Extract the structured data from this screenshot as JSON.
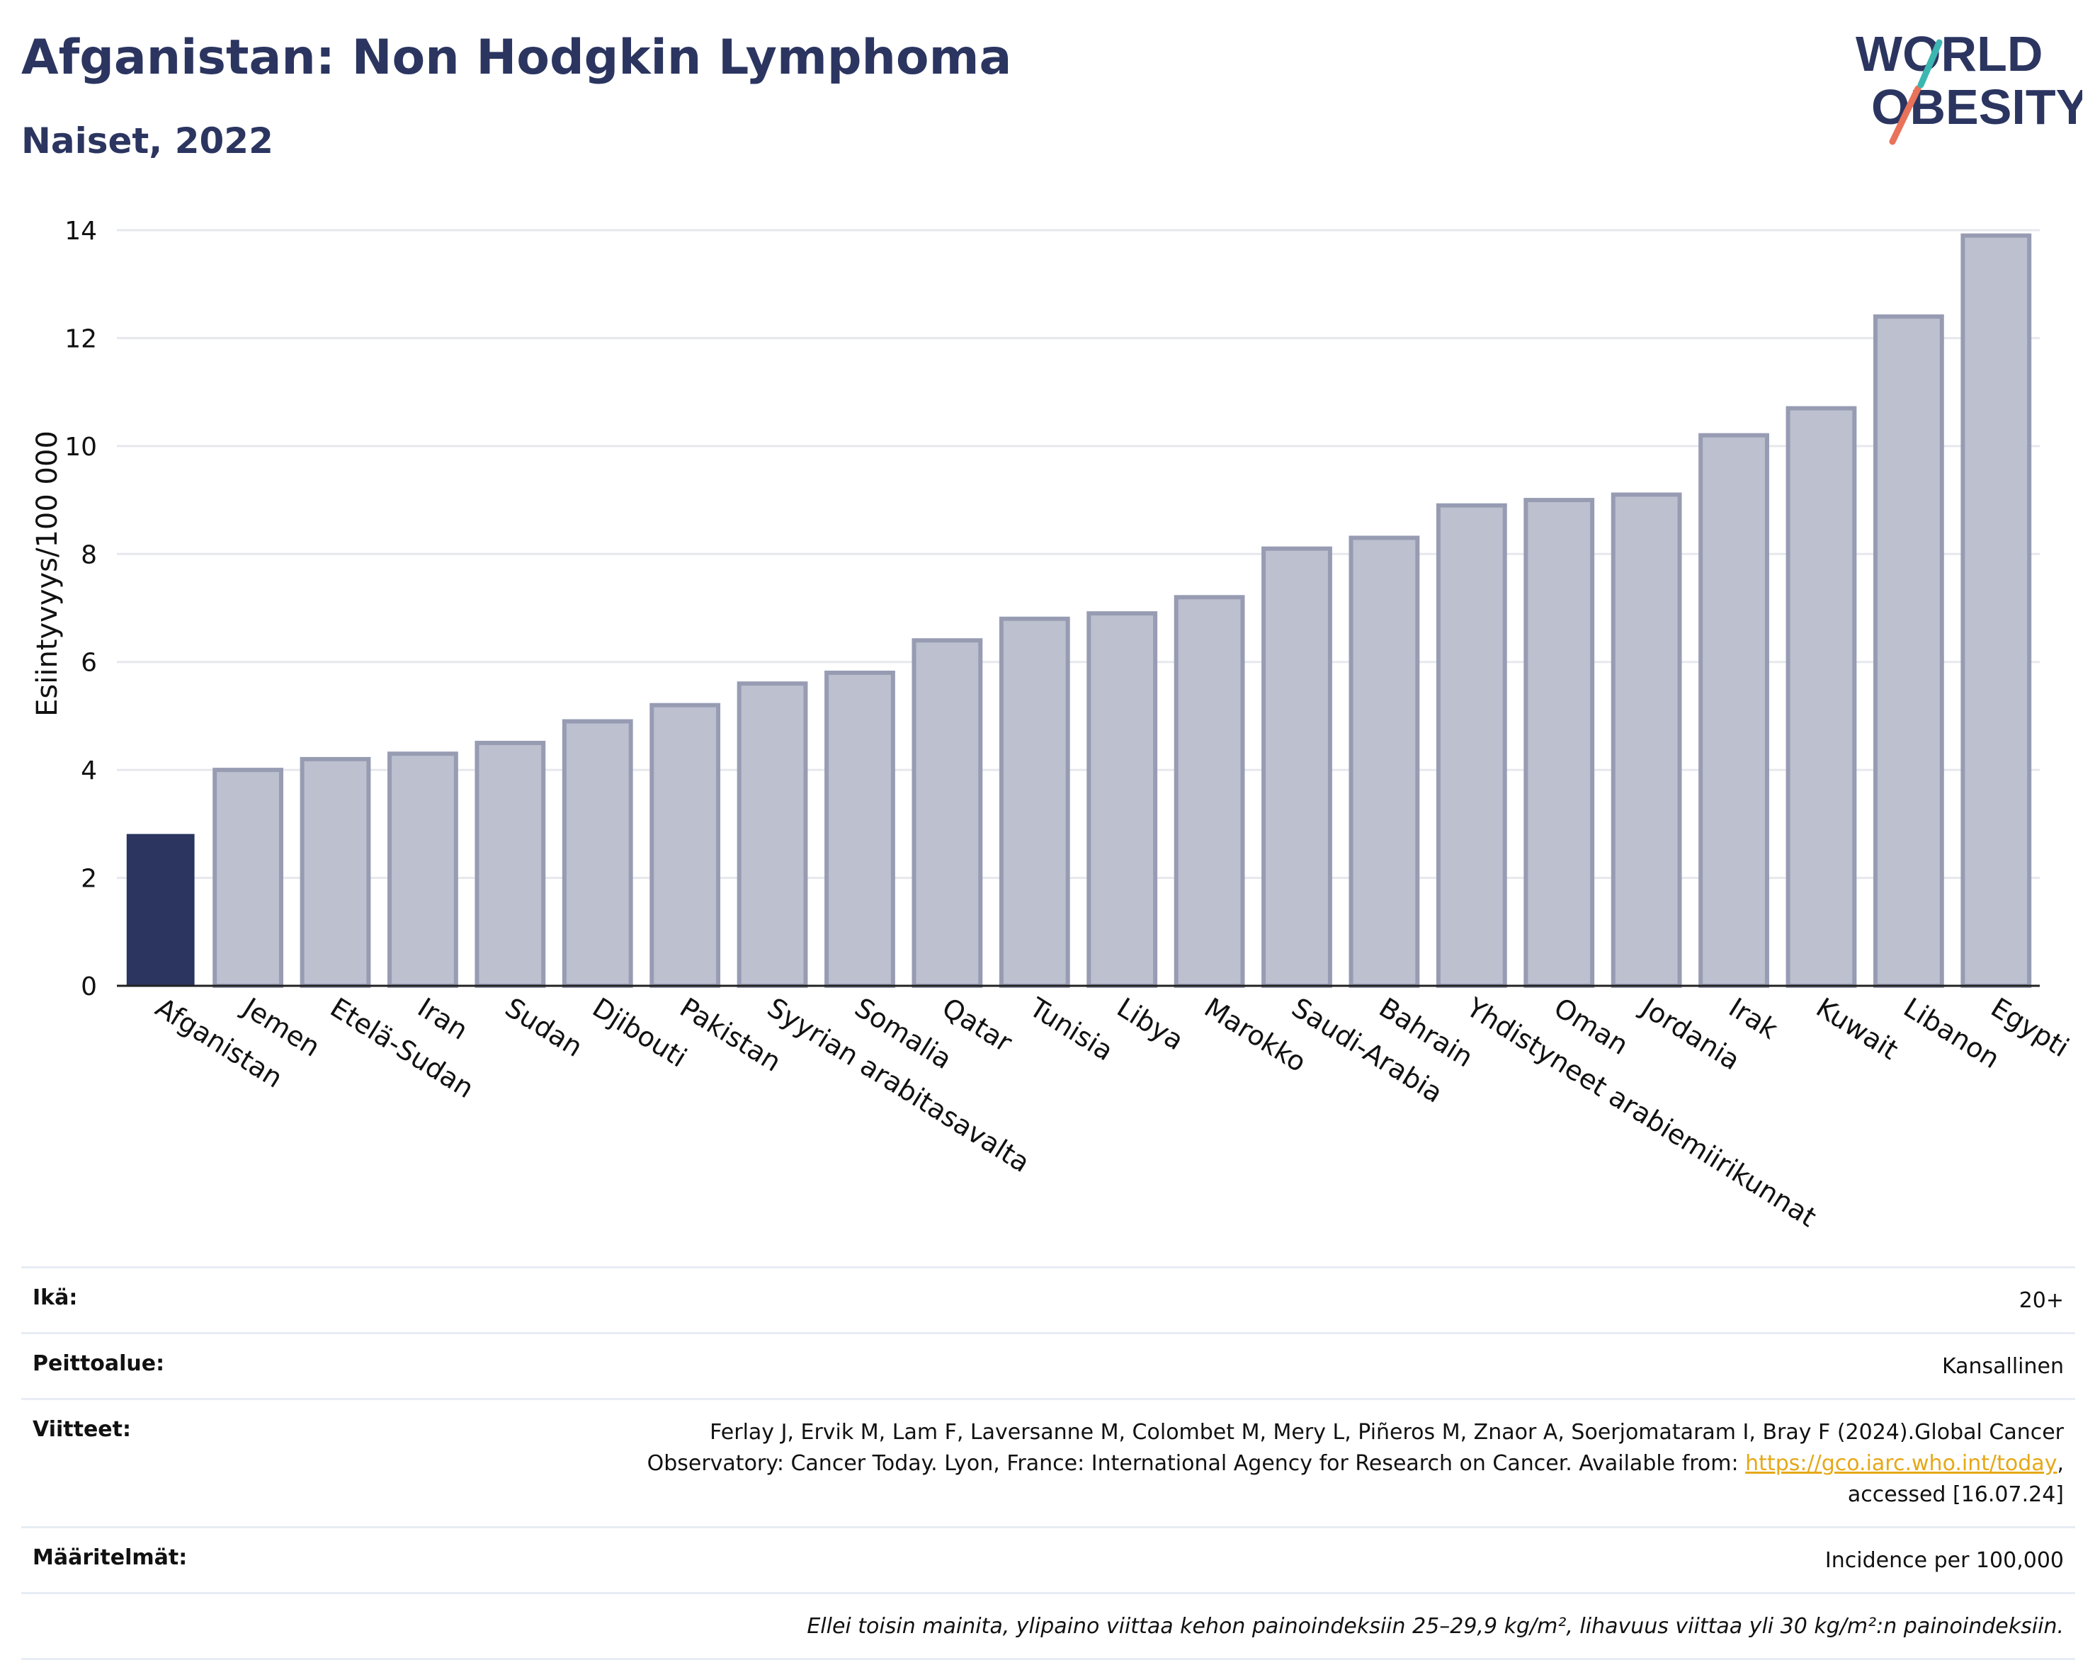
{
  "header": {
    "title": "Afganistan: Non Hodgkin Lymphoma",
    "subtitle": "Naiset, 2022"
  },
  "logo": {
    "line1": "WORLD",
    "line2": "OBESITY"
  },
  "colors": {
    "highlight": "#2b3560",
    "bar": "#bcc0cf",
    "bar_border": "#979cb3",
    "accent_link": "#e6a817"
  },
  "chart_data": {
    "type": "bar",
    "title": "Afganistan: Non Hodgkin Lymphoma",
    "subtitle": "Naiset, 2022",
    "ylabel": "Esiintyvyys/100 000",
    "xlabel": "",
    "ylim": [
      0,
      14
    ],
    "yticks": [
      0,
      2,
      4,
      6,
      8,
      10,
      12,
      14
    ],
    "grid": true,
    "highlight_category": "Afganistan",
    "categories": [
      "Afganistan",
      "Jemen",
      "Etelä-Sudan",
      "Iran",
      "Sudan",
      "Djibouti",
      "Pakistan",
      "Syyrian arabitasavalta",
      "Somalia",
      "Qatar",
      "Tunisia",
      "Libya",
      "Marokko",
      "Saudi-Arabia",
      "Bahrain",
      "Yhdistyneet arabiemiirikunnat",
      "Oman",
      "Jordania",
      "Irak",
      "Kuwait",
      "Libanon",
      "Egypti"
    ],
    "values": [
      2.8,
      4.0,
      4.2,
      4.3,
      4.5,
      4.9,
      5.2,
      5.6,
      5.8,
      6.4,
      6.8,
      6.9,
      7.2,
      8.1,
      8.3,
      8.9,
      9.0,
      9.1,
      10.2,
      10.7,
      12.4,
      13.9
    ]
  },
  "meta": {
    "age_label": "Ikä:",
    "age_value": "20+",
    "coverage_label": "Peittoalue:",
    "coverage_value": "Kansallinen",
    "refs_label": "Viitteet:",
    "refs_line1": "Ferlay J, Ervik M, Lam F, Laversanne M, Colombet M, Mery L, Piñeros M, Znaor A, Soerjomataram I, Bray F (2024).Global Cancer",
    "refs_line2_pre": "Observatory: Cancer Today. Lyon, France: International Agency for Research on Cancer. Available from: ",
    "refs_link": "https://gco.iarc.who.int/today",
    "refs_line2_post": ",",
    "refs_line3": "accessed [16.07.24]",
    "defs_label": "Määritelmät:",
    "defs_value": "Incidence per 100,000",
    "note": "Ellei toisin mainita, ylipaino viittaa kehon painoindeksiin 25–29,9 kg/m², lihavuus viittaa yli 30 kg/m²:n painoindeksiin."
  }
}
